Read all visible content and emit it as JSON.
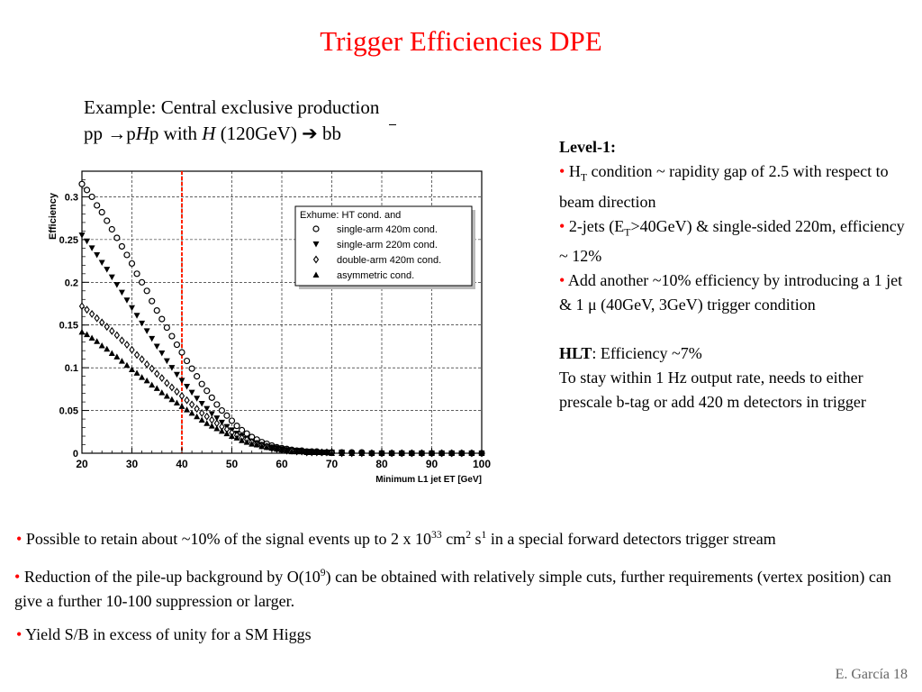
{
  "slide": {
    "title": "Trigger Efficiencies DPE",
    "example_line1": "Example: Central exclusive production",
    "example_line2_a": "pp ",
    "example_line2_arrow1": "→",
    "example_line2_b": "p",
    "example_line2_H": "H",
    "example_line2_c": "p with ",
    "example_line2_H2": "H",
    "example_line2_d": " (120GeV) ",
    "example_line2_arrow2": "➔",
    "example_line2_e": " bb",
    "footer": "E. García  18"
  },
  "right_panel": {
    "level1_heading": "Level-1:",
    "b1_a": "H",
    "b1_sub": "T",
    "b1_b": " condition ~ rapidity gap of 2.5 with respect to beam direction",
    "b2_a": "2-jets (E",
    "b2_sub": "T",
    "b2_b": ">40GeV) & single-sided 220m, efficiency ~ 12%",
    "b3": "Add another ~10% efficiency by introducing  a 1 jet & 1 μ (40GeV, 3GeV) trigger condition",
    "hlt_heading": "HLT",
    "hlt_text": ": Efficiency ~7%",
    "hlt_detail": "To stay within 1 Hz output rate, needs to either prescale b-tag or add  420 m detectors in trigger"
  },
  "bottom": {
    "p1_a": "Possible to retain about ~10% of the signal events up to 2 x 10",
    "p1_sup1": "33",
    "p1_b": " cm",
    "p1_sup2": "2",
    "p1_c": " s",
    "p1_sup3": "1",
    "p1_d": " in a special  forward detectors trigger stream",
    "p2_a": "Reduction of the pile-up background by O(10",
    "p2_sup": "9",
    "p2_b": ") can be obtained with relatively simple cuts, further requirements (vertex position) can give a further 10-100 suppression or larger.",
    "p3": "Yield S/B in excess of unity for a SM Higgs",
    "bullet": "•"
  },
  "colors": {
    "title": "#ff0000",
    "bullet": "#ff0000",
    "cut_line": "#ff2200"
  },
  "chart_data": {
    "type": "scatter",
    "xlabel": "Minimum L1 jet ET [GeV]",
    "ylabel": "Efficiency",
    "xlim": [
      20,
      100
    ],
    "ylim": [
      0,
      0.33
    ],
    "xticks": [
      20,
      30,
      40,
      50,
      60,
      70,
      80,
      90,
      100
    ],
    "yticks": [
      0,
      0.05,
      0.1,
      0.15,
      0.2,
      0.25,
      0.3
    ],
    "ytick_labels": [
      "0",
      "0.05",
      "0.1",
      "0.15",
      "0.2",
      "0.25",
      "0.3"
    ],
    "grid": true,
    "legend_title": "Exhume: HT cond. and",
    "legend_position": "top-right",
    "cut_line_x": 40,
    "series": [
      {
        "name": "single-arm 420m cond.",
        "marker": "open-circle",
        "x": [
          20,
          21,
          22,
          23,
          24,
          25,
          26,
          27,
          28,
          29,
          30,
          31,
          32,
          33,
          34,
          35,
          36,
          37,
          38,
          39,
          40,
          41,
          42,
          43,
          44,
          45,
          46,
          47,
          48,
          49,
          50,
          51,
          52,
          53,
          54,
          55,
          56,
          57,
          58,
          59,
          60,
          61,
          62,
          63,
          64,
          65,
          66,
          67,
          68,
          69,
          70,
          72,
          74,
          76,
          78,
          80,
          82,
          84,
          86,
          88,
          90,
          92,
          94,
          96,
          98,
          100
        ],
        "values": [
          0.315,
          0.308,
          0.3,
          0.29,
          0.282,
          0.272,
          0.262,
          0.252,
          0.242,
          0.232,
          0.222,
          0.21,
          0.2,
          0.19,
          0.178,
          0.167,
          0.157,
          0.147,
          0.137,
          0.127,
          0.118,
          0.108,
          0.099,
          0.09,
          0.081,
          0.073,
          0.065,
          0.057,
          0.05,
          0.044,
          0.038,
          0.032,
          0.027,
          0.023,
          0.019,
          0.016,
          0.013,
          0.011,
          0.009,
          0.007,
          0.006,
          0.005,
          0.004,
          0.003,
          0.003,
          0.002,
          0.002,
          0.002,
          0.001,
          0.001,
          0.001,
          0.001,
          0.001,
          0.001,
          0,
          0,
          0,
          0,
          0,
          0,
          0,
          0,
          0,
          0,
          0,
          0
        ]
      },
      {
        "name": "single-arm 220m cond.",
        "marker": "filled-triangle-down",
        "x": [
          20,
          21,
          22,
          23,
          24,
          25,
          26,
          27,
          28,
          29,
          30,
          31,
          32,
          33,
          34,
          35,
          36,
          37,
          38,
          39,
          40,
          41,
          42,
          43,
          44,
          45,
          46,
          47,
          48,
          49,
          50,
          51,
          52,
          53,
          54,
          55,
          56,
          57,
          58,
          59,
          60,
          61,
          62,
          63,
          64,
          65,
          66,
          67,
          68,
          69,
          70,
          72,
          74,
          76,
          78,
          80,
          82,
          84,
          86,
          88,
          90,
          92,
          94,
          96,
          98,
          100
        ],
        "values": [
          0.255,
          0.248,
          0.24,
          0.232,
          0.223,
          0.215,
          0.206,
          0.197,
          0.188,
          0.179,
          0.17,
          0.161,
          0.152,
          0.143,
          0.134,
          0.125,
          0.117,
          0.108,
          0.1,
          0.092,
          0.085,
          0.078,
          0.071,
          0.064,
          0.058,
          0.052,
          0.046,
          0.041,
          0.036,
          0.031,
          0.027,
          0.023,
          0.02,
          0.017,
          0.014,
          0.012,
          0.01,
          0.008,
          0.007,
          0.006,
          0.005,
          0.004,
          0.003,
          0.003,
          0.002,
          0.002,
          0.001,
          0.001,
          0.001,
          0.001,
          0.001,
          0.001,
          0,
          0,
          0,
          0,
          0,
          0,
          0,
          0,
          0,
          0,
          0,
          0,
          0,
          0
        ]
      },
      {
        "name": "double-arm 420m cond.",
        "marker": "open-diamond",
        "x": [
          20,
          21,
          22,
          23,
          24,
          25,
          26,
          27,
          28,
          29,
          30,
          31,
          32,
          33,
          34,
          35,
          36,
          37,
          38,
          39,
          40,
          41,
          42,
          43,
          44,
          45,
          46,
          47,
          48,
          49,
          50,
          51,
          52,
          53,
          54,
          55,
          56,
          57,
          58,
          59,
          60,
          61,
          62,
          63,
          64,
          65,
          66,
          67,
          68,
          69,
          70,
          72,
          74,
          76,
          78,
          80,
          82,
          84,
          86,
          88,
          90,
          92,
          94,
          96,
          98,
          100
        ],
        "values": [
          0.172,
          0.168,
          0.163,
          0.158,
          0.153,
          0.148,
          0.143,
          0.138,
          0.132,
          0.127,
          0.121,
          0.115,
          0.11,
          0.104,
          0.099,
          0.093,
          0.088,
          0.082,
          0.077,
          0.072,
          0.067,
          0.062,
          0.057,
          0.052,
          0.047,
          0.043,
          0.039,
          0.035,
          0.031,
          0.028,
          0.024,
          0.021,
          0.018,
          0.016,
          0.013,
          0.011,
          0.009,
          0.008,
          0.006,
          0.005,
          0.004,
          0.003,
          0.003,
          0.002,
          0.002,
          0.001,
          0.001,
          0.001,
          0.001,
          0.001,
          0.001,
          0,
          0,
          0,
          0,
          0,
          0,
          0,
          0,
          0,
          0,
          0,
          0,
          0,
          0,
          0
        ]
      },
      {
        "name": "asymmetric cond.",
        "marker": "filled-triangle-up",
        "x": [
          20,
          21,
          22,
          23,
          24,
          25,
          26,
          27,
          28,
          29,
          30,
          31,
          32,
          33,
          34,
          35,
          36,
          37,
          38,
          39,
          40,
          41,
          42,
          43,
          44,
          45,
          46,
          47,
          48,
          49,
          50,
          51,
          52,
          53,
          54,
          55,
          56,
          57,
          58,
          59,
          60,
          61,
          62,
          63,
          64,
          65,
          66,
          67,
          68,
          69,
          70,
          72,
          74,
          76,
          78,
          80,
          82,
          84,
          86,
          88,
          90,
          92,
          94,
          96,
          98,
          100
        ],
        "values": [
          0.142,
          0.139,
          0.135,
          0.131,
          0.126,
          0.122,
          0.117,
          0.113,
          0.108,
          0.103,
          0.098,
          0.094,
          0.089,
          0.085,
          0.08,
          0.076,
          0.071,
          0.067,
          0.063,
          0.059,
          0.055,
          0.051,
          0.047,
          0.043,
          0.039,
          0.035,
          0.032,
          0.029,
          0.026,
          0.023,
          0.02,
          0.018,
          0.015,
          0.013,
          0.011,
          0.01,
          0.008,
          0.007,
          0.006,
          0.005,
          0.004,
          0.003,
          0.002,
          0.002,
          0.002,
          0.001,
          0.001,
          0.001,
          0.001,
          0.001,
          0,
          0,
          0,
          0,
          0,
          0,
          0,
          0,
          0,
          0,
          0,
          0,
          0,
          0,
          0,
          0
        ]
      }
    ]
  }
}
